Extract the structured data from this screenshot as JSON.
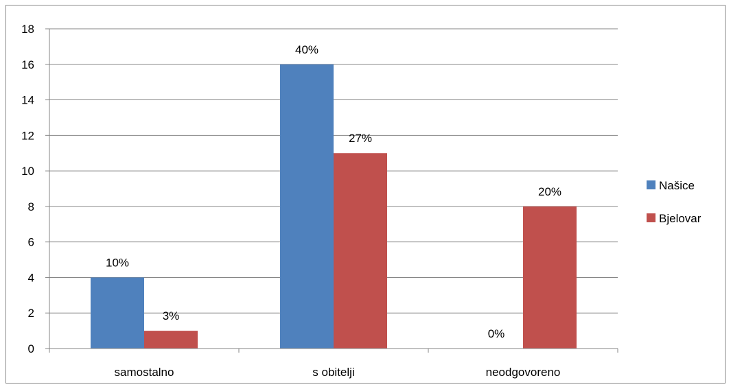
{
  "chart_data": {
    "type": "bar",
    "categories": [
      "samostalno",
      "s obitelji",
      "neodgovoreno"
    ],
    "series": [
      {
        "name": "Našice",
        "values": [
          4,
          16,
          0
        ],
        "labels": [
          "10%",
          "40%",
          "0%"
        ],
        "color": "#4F81BD"
      },
      {
        "name": "Bjelovar",
        "values": [
          1,
          11,
          8
        ],
        "labels": [
          "3%",
          "27%",
          "20%"
        ],
        "color": "#C0504D"
      }
    ],
    "ylim": [
      0,
      18
    ],
    "yticks": [
      0,
      2,
      4,
      6,
      8,
      10,
      12,
      14,
      16,
      18
    ],
    "grid": true,
    "legend_position": "right"
  }
}
